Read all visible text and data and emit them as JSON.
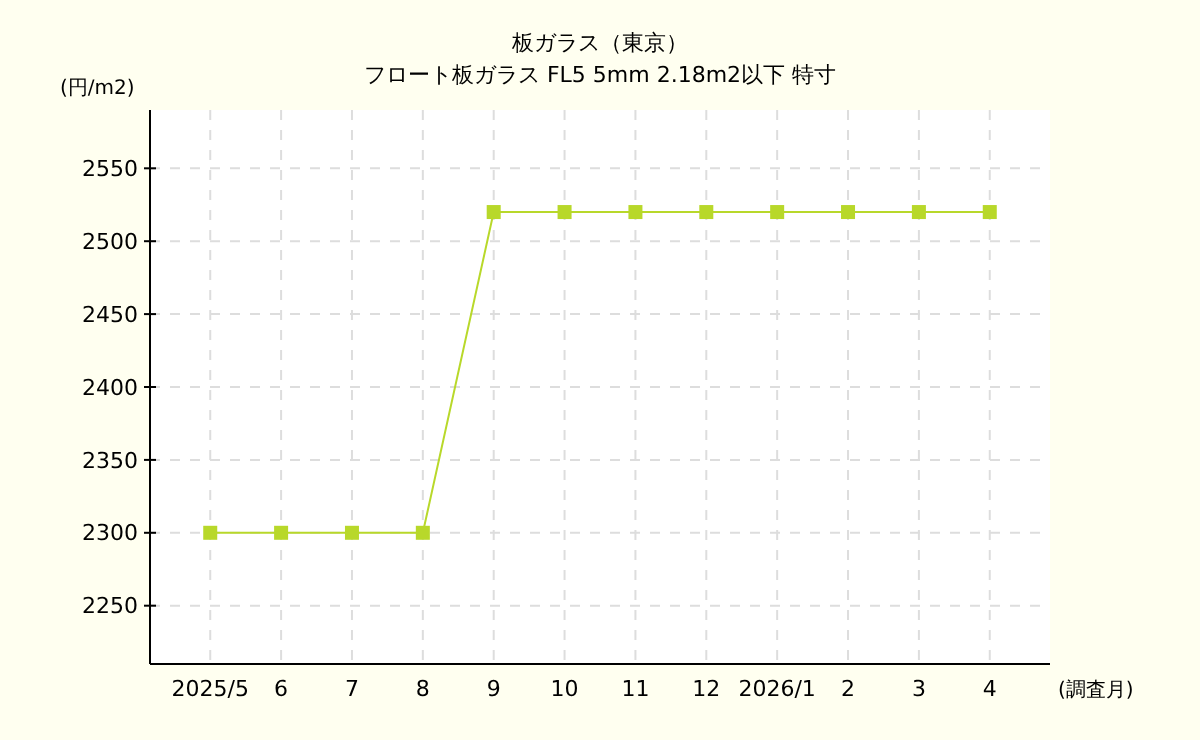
{
  "chart_data": {
    "type": "line",
    "title": "板ガラス（東京）",
    "subtitle": "フロート板ガラス FL5 5mm 2.18m2以下 特寸",
    "ylabel": "(円/m2)",
    "xlabel": "(調査月)",
    "categories": [
      "2025/5",
      "6",
      "7",
      "8",
      "9",
      "10",
      "11",
      "12",
      "2026/1",
      "2",
      "3",
      "4"
    ],
    "series": [
      {
        "color": "#b8d82a",
        "values": [
          2300,
          2300,
          2300,
          2300,
          2520,
          2520,
          2520,
          2520,
          2520,
          2520,
          2520,
          2520
        ]
      }
    ],
    "ylim": [
      2210,
      2590
    ],
    "yticks": [
      2250,
      2300,
      2350,
      2400,
      2450,
      2500,
      2550
    ],
    "grid": true,
    "marker": "square",
    "line_style": "solid"
  }
}
